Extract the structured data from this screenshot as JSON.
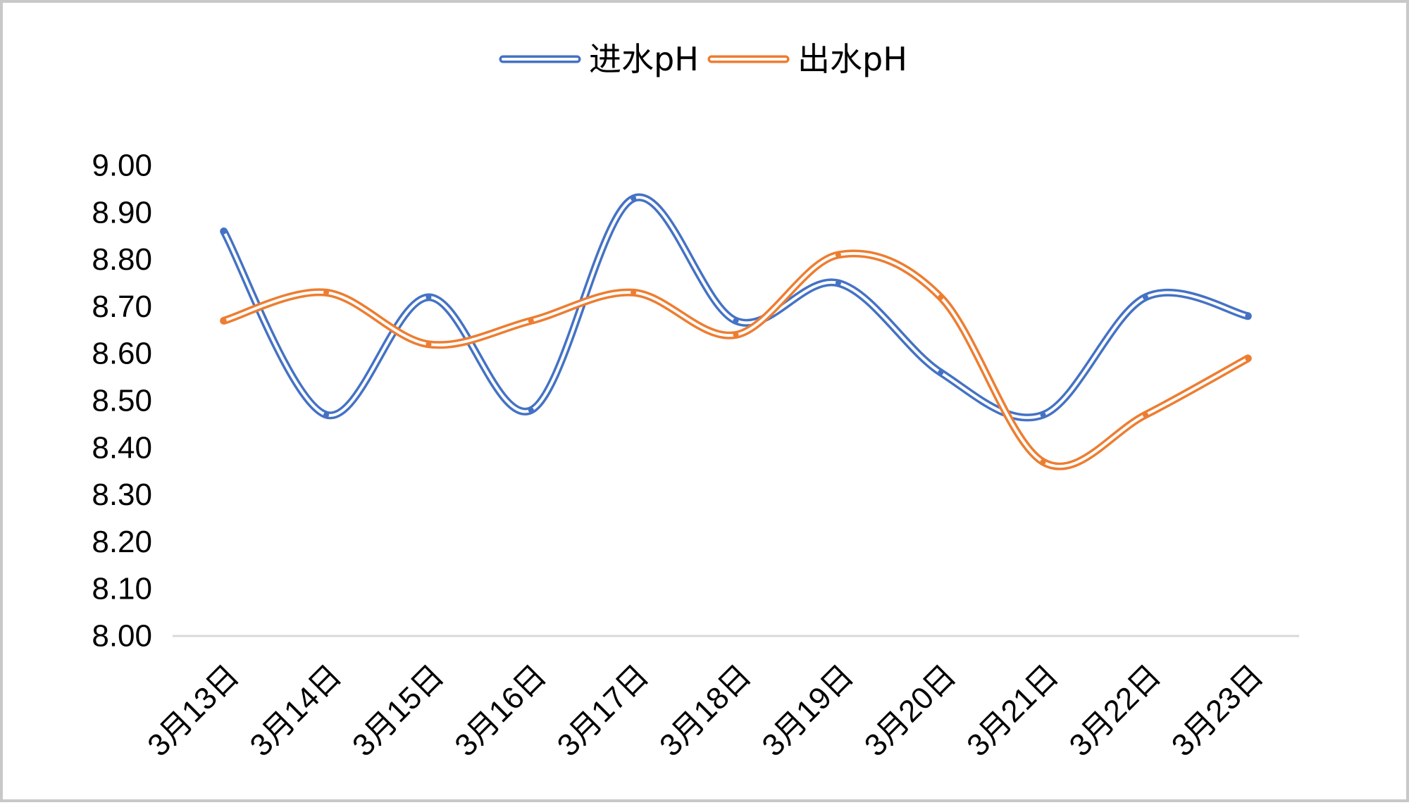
{
  "chart_data": {
    "type": "line",
    "smooth": true,
    "categories": [
      "3月13日",
      "3月14日",
      "3月15日",
      "3月16日",
      "3月17日",
      "3月18日",
      "3月19日",
      "3月20日",
      "3月21日",
      "3月22日",
      "3月23日"
    ],
    "series": [
      {
        "name": "进水pH",
        "color": "#4472C4",
        "values": [
          8.86,
          8.47,
          8.72,
          8.48,
          8.93,
          8.67,
          8.75,
          8.56,
          8.47,
          8.72,
          8.68
        ]
      },
      {
        "name": "出水pH",
        "color": "#ED7D31",
        "values": [
          8.67,
          8.73,
          8.62,
          8.67,
          8.73,
          8.64,
          8.81,
          8.72,
          8.37,
          8.47,
          8.59
        ]
      }
    ],
    "y_ticks": [
      "8.00",
      "8.10",
      "8.20",
      "8.30",
      "8.40",
      "8.50",
      "8.60",
      "8.70",
      "8.80",
      "8.90",
      "9.00"
    ],
    "ylim": [
      8.0,
      9.0
    ],
    "legend_position": "top",
    "gridlines": false
  }
}
